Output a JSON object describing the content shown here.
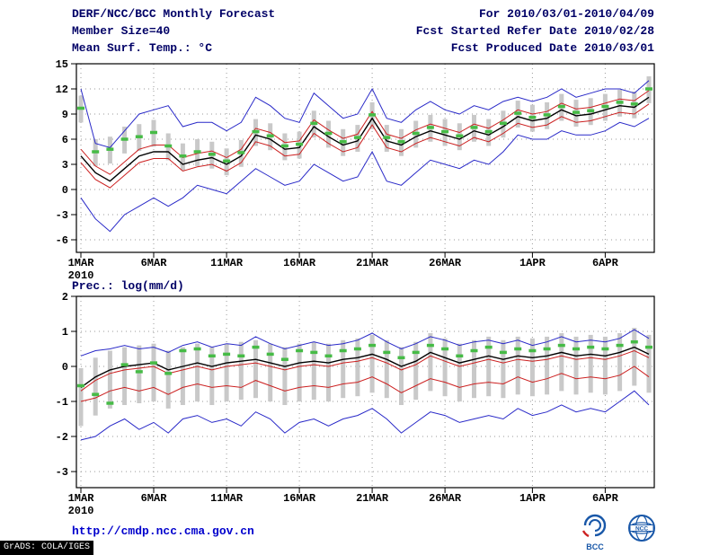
{
  "header": {
    "title": "DERF/NCC/BCC Monthly Forecast",
    "member_size": "Member Size=40",
    "temp_label": "Mean Surf. Temp.: °C",
    "for_range": "For 2010/03/01-2010/04/09",
    "refer_date": "Fcst Started Refer Date 2010/02/28",
    "produced_date": "Fcst Produced Date 2010/03/01"
  },
  "prec_label": "Prec.: log(mm/d)",
  "footer": {
    "url": "http://cmdp.ncc.cma.gov.cn",
    "grads_stamp": "GrADS: COLA/IGES",
    "bcc_logo_text": "BCC",
    "ncc_logo_text": "NCC"
  },
  "colors": {
    "header_text": "#000066",
    "url_text": "#0000cd",
    "extreme_line": "#2929c8",
    "spread_line": "#cc2020",
    "mean_line": "#000000",
    "marker": "#46bb46",
    "bar": "#c9c9c9"
  },
  "chart_data": [
    {
      "type": "line",
      "title": "Mean Surf. Temp.: °C",
      "xlabel": "",
      "ylabel": "",
      "ylim": [
        -7.5,
        15
      ],
      "yticks": [
        -6,
        -3,
        0,
        3,
        6,
        9,
        12,
        15
      ],
      "grid": "dotted",
      "n_points": 40,
      "x_tick_days": [
        0,
        5,
        10,
        15,
        20,
        25,
        31,
        36
      ],
      "x_tick_labels": [
        "1MAR",
        "6MAR",
        "11MAR",
        "16MAR",
        "21MAR",
        "26MAR",
        "1APR",
        "6APR"
      ],
      "year_label": "2010",
      "series": [
        {
          "name": "ensemble-max",
          "color": "#2929c8",
          "width": 1,
          "values": [
            12.0,
            5.5,
            5.0,
            7.0,
            9.0,
            9.5,
            10.0,
            7.5,
            8.0,
            8.0,
            7.0,
            8.0,
            11.0,
            10.0,
            8.5,
            8.0,
            11.5,
            10.0,
            8.5,
            9.0,
            12.0,
            8.5,
            8.0,
            9.5,
            10.5,
            9.5,
            9.0,
            10.0,
            9.5,
            10.5,
            11.0,
            10.5,
            11.0,
            12.0,
            11.0,
            11.5,
            12.0,
            12.0,
            11.5,
            13.0
          ]
        },
        {
          "name": "upper-spread",
          "color": "#cc2020",
          "width": 1,
          "values": [
            4.8,
            2.8,
            1.8,
            3.3,
            4.8,
            5.3,
            5.3,
            3.8,
            4.3,
            4.6,
            3.8,
            4.8,
            7.3,
            6.8,
            5.6,
            5.8,
            8.3,
            7.1,
            6.1,
            6.6,
            9.3,
            6.6,
            6.1,
            7.1,
            7.8,
            7.3,
            6.8,
            7.8,
            7.3,
            8.3,
            9.5,
            9.0,
            9.3,
            10.3,
            9.6,
            9.8,
            10.3,
            10.8,
            10.6,
            11.8
          ]
        },
        {
          "name": "ensemble-mean",
          "color": "#000000",
          "width": 1.4,
          "values": [
            4.0,
            2.0,
            1.0,
            2.5,
            4.0,
            4.5,
            4.5,
            3.0,
            3.5,
            3.8,
            3.0,
            4.0,
            6.5,
            6.0,
            4.8,
            5.0,
            7.5,
            6.3,
            5.3,
            5.8,
            8.5,
            5.8,
            5.3,
            6.3,
            7.0,
            6.5,
            6.0,
            7.0,
            6.5,
            7.5,
            8.7,
            8.2,
            8.5,
            9.5,
            8.8,
            9.0,
            9.5,
            10.0,
            9.8,
            11.0
          ]
        },
        {
          "name": "lower-spread",
          "color": "#cc2020",
          "width": 1,
          "values": [
            3.2,
            1.2,
            0.2,
            1.7,
            3.2,
            3.7,
            3.7,
            2.2,
            2.7,
            3.0,
            2.2,
            3.2,
            5.7,
            5.2,
            4.0,
            4.2,
            6.7,
            5.5,
            4.5,
            5.0,
            7.7,
            5.0,
            4.5,
            5.5,
            6.2,
            5.7,
            5.2,
            6.2,
            5.7,
            6.7,
            7.9,
            7.4,
            7.7,
            8.7,
            8.0,
            8.2,
            8.7,
            9.2,
            9.0,
            10.2
          ]
        },
        {
          "name": "ensemble-min",
          "color": "#2929c8",
          "width": 1,
          "values": [
            -1.0,
            -3.5,
            -5.0,
            -3.0,
            -2.0,
            -1.0,
            -2.0,
            -1.0,
            0.5,
            0.0,
            -0.5,
            1.0,
            2.5,
            1.5,
            0.5,
            1.0,
            3.0,
            2.0,
            1.0,
            1.5,
            4.5,
            1.0,
            0.5,
            2.0,
            3.5,
            3.0,
            2.5,
            3.5,
            3.0,
            4.5,
            6.5,
            6.0,
            6.0,
            7.0,
            6.5,
            6.5,
            7.0,
            8.0,
            7.5,
            8.5
          ]
        }
      ],
      "bars": {
        "name": "member-range-bar",
        "color": "#c9c9c9",
        "low": [
          8.0,
          2.8,
          3.1,
          4.3,
          4.6,
          5.1,
          3.5,
          2.3,
          2.8,
          2.5,
          1.7,
          2.7,
          5.2,
          4.7,
          3.5,
          3.7,
          6.2,
          5.0,
          4.0,
          4.5,
          7.2,
          4.5,
          4.0,
          5.0,
          5.7,
          5.2,
          4.7,
          5.7,
          5.2,
          6.2,
          7.4,
          6.9,
          7.2,
          8.2,
          7.5,
          7.7,
          8.2,
          8.7,
          8.5,
          10.3
        ],
        "high": [
          11.2,
          6.0,
          6.3,
          7.5,
          7.8,
          8.3,
          6.7,
          5.5,
          6.0,
          5.7,
          4.9,
          5.9,
          8.4,
          7.9,
          6.7,
          6.9,
          9.4,
          8.2,
          7.2,
          7.7,
          10.4,
          7.7,
          7.2,
          8.2,
          8.9,
          8.4,
          7.9,
          8.9,
          8.4,
          9.4,
          10.6,
          10.1,
          10.4,
          11.4,
          10.7,
          10.9,
          11.4,
          11.9,
          11.7,
          13.5
        ]
      },
      "markers": {
        "name": "daily-green-marker",
        "color": "#46bb46",
        "values": [
          9.7,
          4.5,
          4.8,
          6.0,
          6.3,
          6.8,
          5.2,
          4.0,
          4.5,
          4.2,
          3.4,
          4.4,
          6.9,
          6.4,
          5.2,
          5.4,
          7.9,
          6.7,
          5.7,
          6.2,
          8.9,
          6.2,
          5.7,
          6.7,
          7.4,
          6.9,
          6.4,
          7.4,
          6.9,
          7.9,
          9.1,
          8.6,
          8.9,
          9.9,
          9.2,
          9.4,
          9.9,
          10.4,
          10.2,
          12.0
        ]
      }
    },
    {
      "type": "line",
      "title": "Prec.: log(mm/d)",
      "xlabel": "",
      "ylabel": "",
      "ylim": [
        -3.46,
        2
      ],
      "yticks": [
        -3,
        -2,
        -1,
        0,
        1,
        2
      ],
      "grid": "dotted",
      "n_points": 40,
      "x_tick_days": [
        0,
        5,
        10,
        15,
        20,
        25,
        31,
        36
      ],
      "x_tick_labels": [
        "1MAR",
        "6MAR",
        "11MAR",
        "16MAR",
        "21MAR",
        "26MAR",
        "1APR",
        "6APR"
      ],
      "year_label": "2010",
      "series": [
        {
          "name": "ensemble-max",
          "color": "#2929c8",
          "width": 1,
          "values": [
            0.3,
            0.45,
            0.5,
            0.6,
            0.5,
            0.55,
            0.4,
            0.6,
            0.7,
            0.55,
            0.65,
            0.6,
            0.85,
            0.65,
            0.5,
            0.6,
            0.7,
            0.6,
            0.65,
            0.75,
            0.95,
            0.7,
            0.5,
            0.65,
            0.85,
            0.75,
            0.6,
            0.7,
            0.75,
            0.65,
            0.75,
            0.6,
            0.7,
            0.85,
            0.7,
            0.75,
            0.7,
            0.8,
            1.05,
            0.8
          ]
        },
        {
          "name": "upper-spread",
          "color": "#cc2020",
          "width": 1,
          "values": [
            -0.7,
            -0.4,
            -0.2,
            -0.1,
            -0.05,
            0.0,
            -0.2,
            -0.1,
            0.0,
            -0.1,
            0.0,
            0.05,
            0.1,
            0.0,
            -0.1,
            0.0,
            0.05,
            0.0,
            0.1,
            0.15,
            0.25,
            0.1,
            -0.1,
            0.05,
            0.3,
            0.15,
            0.0,
            0.1,
            0.2,
            0.1,
            0.2,
            0.15,
            0.2,
            0.3,
            0.2,
            0.25,
            0.2,
            0.3,
            0.45,
            0.25
          ]
        },
        {
          "name": "ensemble-mean",
          "color": "#000000",
          "width": 1.4,
          "values": [
            -0.6,
            -0.3,
            -0.1,
            0.0,
            0.05,
            0.1,
            -0.1,
            0.0,
            0.1,
            0.0,
            0.1,
            0.15,
            0.2,
            0.1,
            0.0,
            0.1,
            0.15,
            0.1,
            0.2,
            0.25,
            0.35,
            0.2,
            0.0,
            0.15,
            0.4,
            0.25,
            0.1,
            0.2,
            0.3,
            0.2,
            0.3,
            0.25,
            0.3,
            0.4,
            0.3,
            0.35,
            0.3,
            0.4,
            0.55,
            0.35
          ]
        },
        {
          "name": "lower-spread",
          "color": "#cc2020",
          "width": 1,
          "values": [
            -1.0,
            -0.9,
            -0.7,
            -0.6,
            -0.7,
            -0.6,
            -0.8,
            -0.6,
            -0.5,
            -0.6,
            -0.55,
            -0.6,
            -0.4,
            -0.55,
            -0.7,
            -0.6,
            -0.55,
            -0.6,
            -0.5,
            -0.45,
            -0.3,
            -0.5,
            -0.75,
            -0.55,
            -0.35,
            -0.45,
            -0.6,
            -0.5,
            -0.45,
            -0.5,
            -0.3,
            -0.45,
            -0.35,
            -0.2,
            -0.35,
            -0.3,
            -0.35,
            -0.25,
            0.0,
            -0.3
          ]
        },
        {
          "name": "ensemble-min",
          "color": "#2929c8",
          "width": 1,
          "values": [
            -2.1,
            -2.0,
            -1.7,
            -1.5,
            -1.8,
            -1.6,
            -1.9,
            -1.5,
            -1.4,
            -1.6,
            -1.5,
            -1.7,
            -1.3,
            -1.5,
            -1.9,
            -1.6,
            -1.5,
            -1.7,
            -1.5,
            -1.4,
            -1.2,
            -1.5,
            -1.9,
            -1.6,
            -1.3,
            -1.4,
            -1.6,
            -1.5,
            -1.4,
            -1.5,
            -1.2,
            -1.4,
            -1.3,
            -1.1,
            -1.3,
            -1.2,
            -1.3,
            -1.0,
            -0.7,
            -1.1
          ]
        }
      ],
      "bars": {
        "name": "member-range-bar",
        "color": "#c9c9c9",
        "low": [
          -1.7,
          -1.4,
          -1.2,
          -1.1,
          -1.05,
          -1.0,
          -1.2,
          -1.1,
          -1.0,
          -1.1,
          -1.0,
          -0.95,
          -0.9,
          -1.0,
          -1.1,
          -1.0,
          -0.95,
          -1.0,
          -0.9,
          -0.85,
          -0.75,
          -0.9,
          -1.1,
          -0.95,
          -0.7,
          -0.85,
          -1.0,
          -0.9,
          -0.85,
          -0.9,
          -0.8,
          -0.85,
          -0.8,
          -0.7,
          -0.8,
          -0.75,
          -0.8,
          -0.7,
          -0.55,
          -0.75
        ],
        "high": [
          -0.05,
          0.25,
          0.45,
          0.55,
          0.6,
          0.65,
          0.45,
          0.55,
          0.65,
          0.55,
          0.65,
          0.7,
          0.75,
          0.65,
          0.55,
          0.65,
          0.7,
          0.65,
          0.75,
          0.8,
          0.9,
          0.75,
          0.55,
          0.7,
          0.95,
          0.8,
          0.65,
          0.75,
          0.85,
          0.75,
          0.85,
          0.8,
          0.85,
          0.95,
          0.85,
          0.9,
          0.85,
          0.95,
          1.1,
          0.9
        ]
      },
      "markers": {
        "name": "daily-green-marker",
        "color": "#46bb46",
        "values": [
          -0.55,
          -0.8,
          -1.05,
          0.05,
          -0.15,
          0.1,
          -0.2,
          0.45,
          0.5,
          0.3,
          0.35,
          0.3,
          0.55,
          0.35,
          0.2,
          0.45,
          0.4,
          0.3,
          0.45,
          0.5,
          0.6,
          0.4,
          0.25,
          0.4,
          0.6,
          0.5,
          0.3,
          0.45,
          0.55,
          0.4,
          0.5,
          0.45,
          0.5,
          0.6,
          0.5,
          0.55,
          0.5,
          0.6,
          0.7,
          0.55
        ]
      }
    }
  ]
}
